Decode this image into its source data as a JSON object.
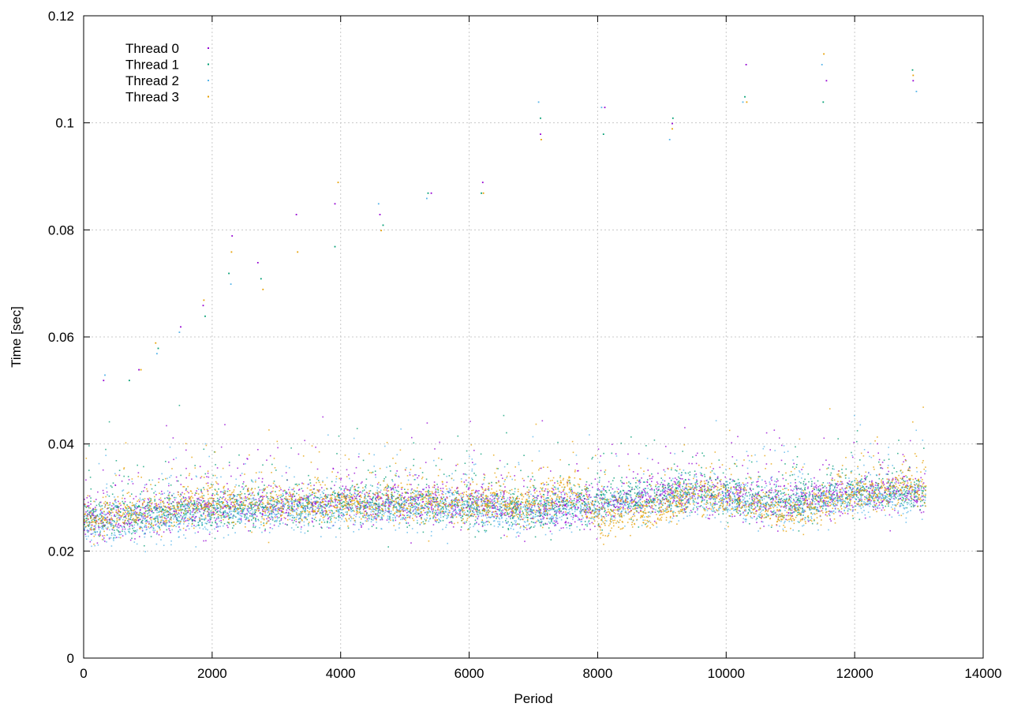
{
  "chart_data": {
    "type": "scatter",
    "title": "",
    "xlabel": "Period",
    "ylabel": "Time [sec]",
    "xlim": [
      0,
      14000
    ],
    "ylim": [
      0,
      0.12
    ],
    "x_ticks": [
      {
        "value": 0,
        "label": "0"
      },
      {
        "value": 2000,
        "label": "2000"
      },
      {
        "value": 4000,
        "label": "4000"
      },
      {
        "value": 6000,
        "label": "6000"
      },
      {
        "value": 8000,
        "label": "8000"
      },
      {
        "value": 10000,
        "label": "10000"
      },
      {
        "value": 12000,
        "label": "12000"
      },
      {
        "value": 14000,
        "label": "14000"
      }
    ],
    "y_ticks": [
      {
        "value": 0,
        "label": "0"
      },
      {
        "value": 0.02,
        "label": "0.02"
      },
      {
        "value": 0.04,
        "label": "0.04"
      },
      {
        "value": 0.06,
        "label": "0.06"
      },
      {
        "value": 0.08,
        "label": "0.08"
      },
      {
        "value": 0.1,
        "label": "0.1"
      },
      {
        "value": 0.12,
        "label": "0.12"
      }
    ],
    "grid": true,
    "legend_position": "top-left",
    "series": [
      {
        "name": "Thread 0",
        "color": "#9400d3",
        "x_range": [
          0,
          13100
        ],
        "baseline": [
          [
            0,
            0.026
          ],
          [
            2000,
            0.028
          ],
          [
            4000,
            0.029
          ],
          [
            6000,
            0.029
          ],
          [
            7000,
            0.028
          ],
          [
            8000,
            0.029
          ],
          [
            9500,
            0.031
          ],
          [
            11000,
            0.029
          ],
          [
            12000,
            0.031
          ],
          [
            13100,
            0.031
          ]
        ],
        "outliers": [
          [
            300,
            0.052
          ],
          [
            850,
            0.054
          ],
          [
            1500,
            0.062
          ],
          [
            1850,
            0.066
          ],
          [
            2300,
            0.079
          ],
          [
            2700,
            0.074
          ],
          [
            3300,
            0.083
          ],
          [
            3900,
            0.085
          ],
          [
            4600,
            0.083
          ],
          [
            5400,
            0.087
          ],
          [
            6200,
            0.089
          ],
          [
            7100,
            0.098
          ],
          [
            8100,
            0.103
          ],
          [
            9150,
            0.1
          ],
          [
            10300,
            0.111
          ],
          [
            11550,
            0.108
          ],
          [
            12900,
            0.108
          ]
        ]
      },
      {
        "name": "Thread 1",
        "color": "#009e73",
        "x_range": [
          0,
          13100
        ],
        "baseline": [
          [
            0,
            0.026
          ],
          [
            2000,
            0.028
          ],
          [
            4000,
            0.029
          ],
          [
            6000,
            0.028
          ],
          [
            7000,
            0.028
          ],
          [
            8000,
            0.029
          ],
          [
            9500,
            0.031
          ],
          [
            11000,
            0.029
          ],
          [
            12000,
            0.031
          ],
          [
            13100,
            0.031
          ]
        ],
        "outliers": [
          [
            700,
            0.052
          ],
          [
            1150,
            0.058
          ],
          [
            1880,
            0.064
          ],
          [
            2250,
            0.072
          ],
          [
            2750,
            0.071
          ],
          [
            3900,
            0.077
          ],
          [
            4650,
            0.081
          ],
          [
            5350,
            0.087
          ],
          [
            6180,
            0.087
          ],
          [
            7100,
            0.101
          ],
          [
            8080,
            0.098
          ],
          [
            9160,
            0.101
          ],
          [
            10280,
            0.105
          ],
          [
            11500,
            0.104
          ],
          [
            12890,
            0.11
          ]
        ]
      },
      {
        "name": "Thread 2",
        "color": "#56b4e9",
        "x_range": [
          0,
          13100
        ],
        "baseline": [
          [
            0,
            0.025
          ],
          [
            2000,
            0.027
          ],
          [
            4000,
            0.028
          ],
          [
            6000,
            0.028
          ],
          [
            7000,
            0.027
          ],
          [
            8000,
            0.028
          ],
          [
            9500,
            0.03
          ],
          [
            11000,
            0.028
          ],
          [
            12000,
            0.03
          ],
          [
            13100,
            0.03
          ]
        ],
        "outliers": [
          [
            320,
            0.053
          ],
          [
            1130,
            0.057
          ],
          [
            1480,
            0.061
          ],
          [
            2280,
            0.07
          ],
          [
            4580,
            0.085
          ],
          [
            5330,
            0.086
          ],
          [
            7070,
            0.104
          ],
          [
            8050,
            0.103
          ],
          [
            9110,
            0.097
          ],
          [
            10250,
            0.104
          ],
          [
            11480,
            0.111
          ],
          [
            12950,
            0.106
          ]
        ]
      },
      {
        "name": "Thread 3",
        "color": "#e69f00",
        "x_range": [
          0,
          13100
        ],
        "baseline": [
          [
            0,
            0.026
          ],
          [
            2000,
            0.029
          ],
          [
            4000,
            0.029
          ],
          [
            6000,
            0.029
          ],
          [
            7000,
            0.029
          ],
          [
            7600,
            0.032
          ],
          [
            8000,
            0.026
          ],
          [
            9000,
            0.028
          ],
          [
            9500,
            0.031
          ],
          [
            11000,
            0.027
          ],
          [
            12000,
            0.031
          ],
          [
            13100,
            0.032
          ]
        ],
        "outliers": [
          [
            880,
            0.054
          ],
          [
            1110,
            0.059
          ],
          [
            1860,
            0.067
          ],
          [
            2290,
            0.076
          ],
          [
            2780,
            0.069
          ],
          [
            3320,
            0.076
          ],
          [
            3950,
            0.089
          ],
          [
            4620,
            0.08
          ],
          [
            6210,
            0.087
          ],
          [
            7110,
            0.097
          ],
          [
            9150,
            0.099
          ],
          [
            10310,
            0.104
          ],
          [
            11510,
            0.113
          ],
          [
            12900,
            0.109
          ]
        ]
      }
    ]
  }
}
